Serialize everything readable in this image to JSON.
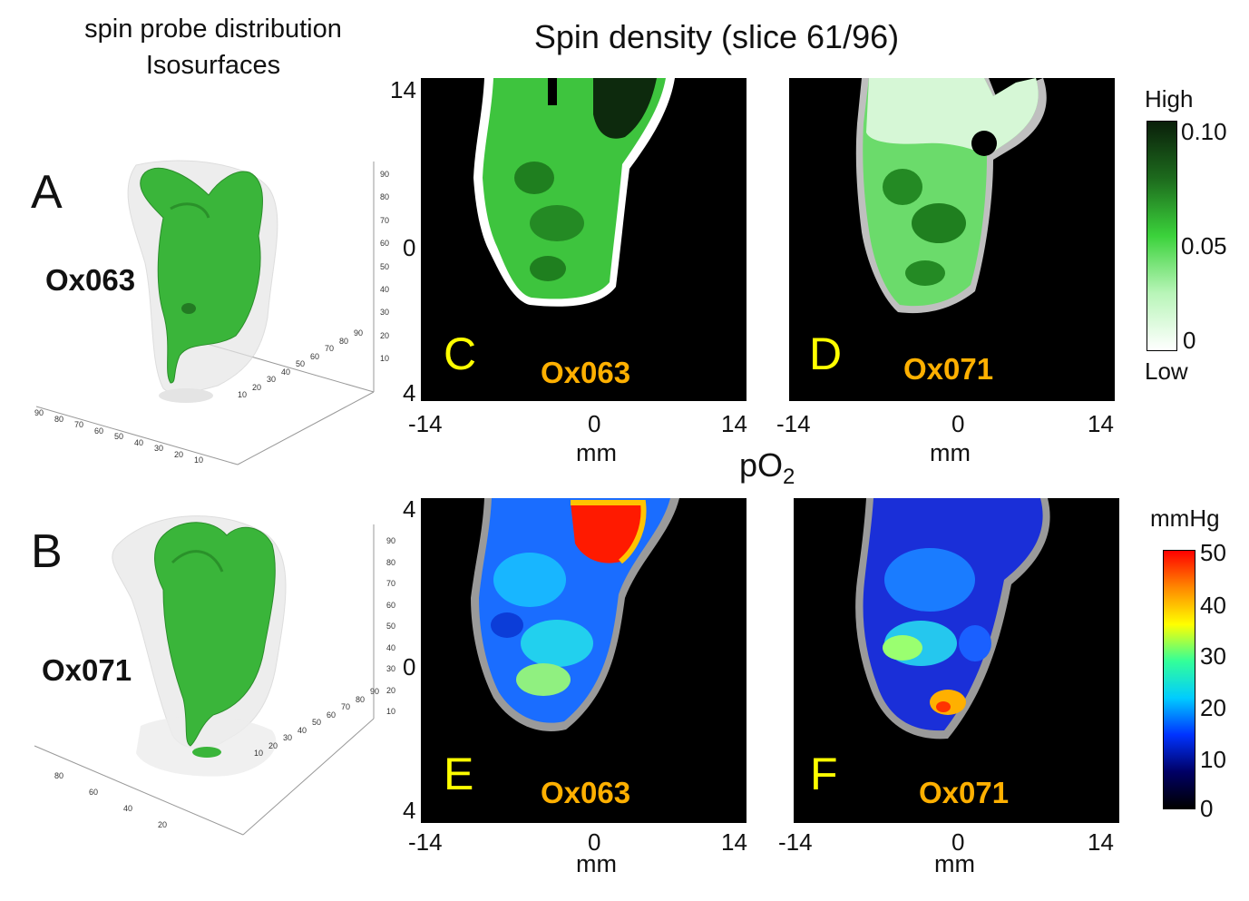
{
  "left_heading": {
    "line1": "spin probe distribution",
    "line2": "Isosurfaces"
  },
  "spin_title": "Spin density (slice 61/96)",
  "po2_title": {
    "main": "pO",
    "sub": "2"
  },
  "panels": {
    "A": {
      "letter": "A",
      "sample": "Ox063"
    },
    "B": {
      "letter": "B",
      "sample": "Ox071"
    },
    "C": {
      "letter": "C",
      "sample": "Ox063"
    },
    "D": {
      "letter": "D",
      "sample": "Ox071"
    },
    "E": {
      "letter": "E",
      "sample": "Ox063"
    },
    "F": {
      "letter": "F",
      "sample": "Ox071"
    }
  },
  "axes": {
    "x_ticks": [
      "-14",
      "0",
      "14"
    ],
    "x_label": "mm",
    "y_ticks_top": [
      "14",
      "0",
      "4"
    ],
    "y_ticks_bottom": [
      "4",
      "0",
      "4"
    ]
  },
  "spin_colorbar": {
    "top_label": "High",
    "bottom_label": "Low",
    "ticks": [
      "0.10",
      "0.05",
      "0"
    ],
    "colors": [
      "#0a1f0a",
      "#1d6b1d",
      "#3bd23b",
      "#b8f5b8",
      "#ffffff"
    ]
  },
  "po2_colorbar": {
    "unit": "mmHg",
    "ticks": [
      "50",
      "40",
      "30",
      "20",
      "10",
      "0"
    ],
    "colors": [
      "#ff0000",
      "#ff8800",
      "#ffff00",
      "#33ff99",
      "#00ccff",
      "#0033ff",
      "#000066",
      "#000000"
    ]
  },
  "iso_axis_ticks": {
    "A_z": [
      "90",
      "80",
      "70",
      "60",
      "50",
      "40",
      "30",
      "20",
      "10"
    ],
    "A_x": [
      "90",
      "80",
      "70",
      "60",
      "50",
      "40",
      "30",
      "20",
      "10"
    ],
    "A_y": [
      "10",
      "20",
      "30",
      "40",
      "50",
      "60",
      "70",
      "80",
      "90"
    ],
    "B_z": [
      "90",
      "80",
      "70",
      "60",
      "50",
      "40",
      "30",
      "20",
      "10"
    ],
    "B_x": [
      "80",
      "60",
      "40",
      "20"
    ],
    "B_y": [
      "10",
      "20",
      "30",
      "40",
      "50",
      "60",
      "70",
      "80",
      "90"
    ]
  }
}
